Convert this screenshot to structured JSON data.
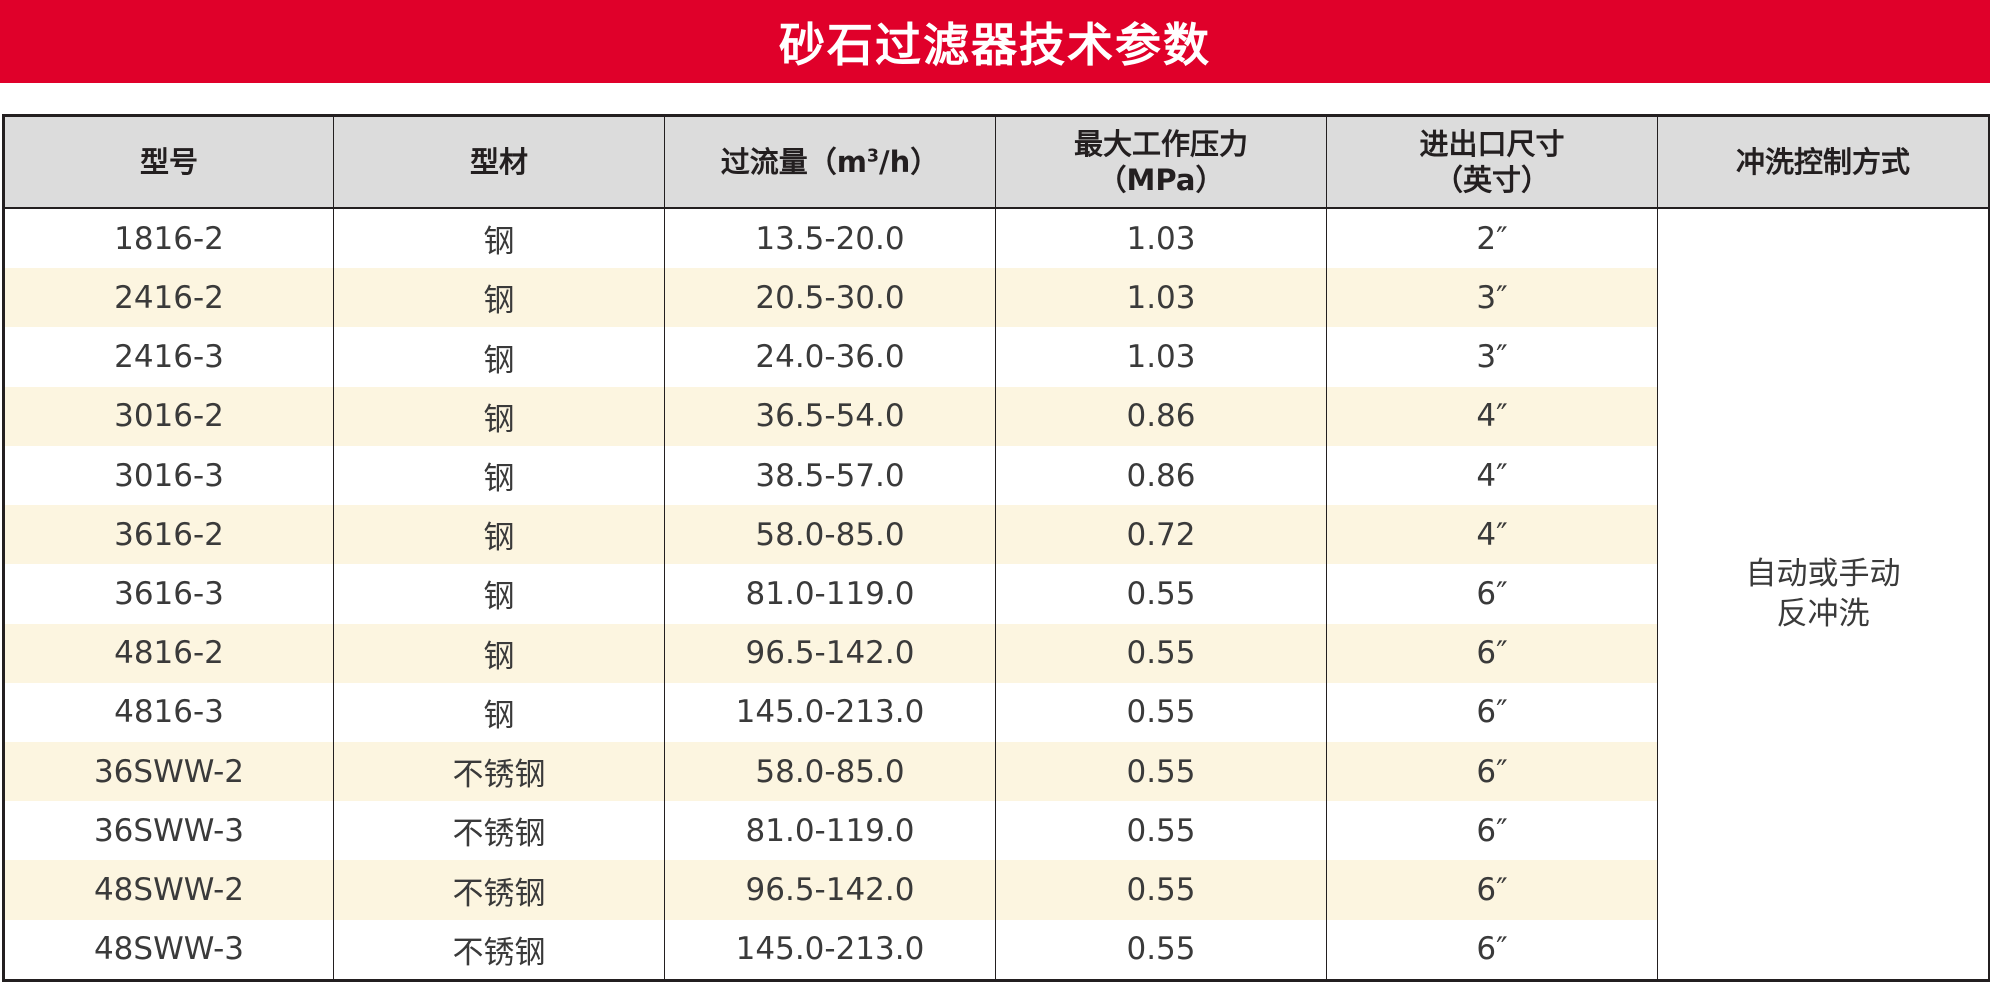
{
  "title": "砂石过滤器技术参数",
  "headers": {
    "model": "型号",
    "material": "型材",
    "flow_prefix": "过流量（m",
    "flow_sup": "3",
    "flow_suffix": "/h）",
    "pressure_line1": "最大工作压力",
    "pressure_line2": "（MPa）",
    "size_line1": "进出口尺寸",
    "size_line2": "（英寸）",
    "control": "冲洗控制方式"
  },
  "control_method": {
    "line1": "自动或手动",
    "line2": "反冲洗"
  },
  "rows": [
    {
      "model": "1816-2",
      "material": "钢",
      "flow": "13.5-20.0",
      "pressure": "1.03",
      "size": "2″"
    },
    {
      "model": "2416-2",
      "material": "钢",
      "flow": "20.5-30.0",
      "pressure": "1.03",
      "size": "3″"
    },
    {
      "model": "2416-3",
      "material": "钢",
      "flow": "24.0-36.0",
      "pressure": "1.03",
      "size": "3″"
    },
    {
      "model": "3016-2",
      "material": "钢",
      "flow": "36.5-54.0",
      "pressure": "0.86",
      "size": "4″"
    },
    {
      "model": "3016-3",
      "material": "钢",
      "flow": "38.5-57.0",
      "pressure": "0.86",
      "size": "4″"
    },
    {
      "model": "3616-2",
      "material": "钢",
      "flow": "58.0-85.0",
      "pressure": "0.72",
      "size": "4″"
    },
    {
      "model": "3616-3",
      "material": "钢",
      "flow": "81.0-119.0",
      "pressure": "0.55",
      "size": "6″"
    },
    {
      "model": "4816-2",
      "material": "钢",
      "flow": "96.5-142.0",
      "pressure": "0.55",
      "size": "6″"
    },
    {
      "model": "4816-3",
      "material": "钢",
      "flow": "145.0-213.0",
      "pressure": "0.55",
      "size": "6″"
    },
    {
      "model": "36SWW-2",
      "material": "不锈钢",
      "flow": "58.0-85.0",
      "pressure": "0.55",
      "size": "6″"
    },
    {
      "model": "36SWW-3",
      "material": "不锈钢",
      "flow": "81.0-119.0",
      "pressure": "0.55",
      "size": "6″"
    },
    {
      "model": "48SWW-2",
      "material": "不锈钢",
      "flow": "96.5-142.0",
      "pressure": "0.55",
      "size": "6″"
    },
    {
      "model": "48SWW-3",
      "material": "不锈钢",
      "flow": "145.0-213.0",
      "pressure": "0.55",
      "size": "6″"
    }
  ],
  "colors": {
    "title_bar": "#e0002a",
    "header_bg": "#dcdcdc",
    "alt_row_bg": "#fcf5e0",
    "border": "#231f20"
  }
}
